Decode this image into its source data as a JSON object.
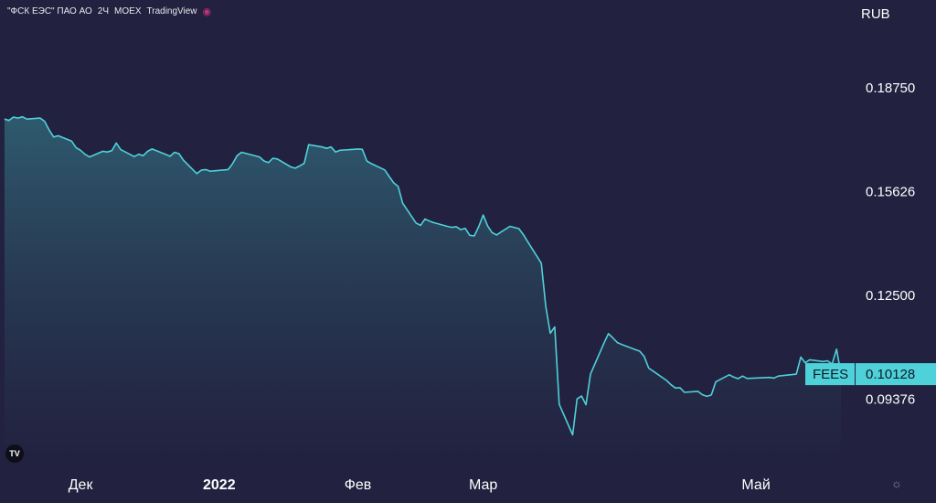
{
  "header": {
    "title": "\"ФСК ЕЭС\" ПАО АО",
    "interval": "2Ч",
    "exchange": "MOEX",
    "platform": "TradingView"
  },
  "currency": "RUB",
  "ticker": "FEES",
  "last_price": "0.10128",
  "colors": {
    "background": "#22213f",
    "line": "#4fd1d9",
    "label_bg": "#4fd1d9",
    "fill_top": "#2f5d70"
  },
  "chart_data": {
    "type": "area",
    "series": [
      {
        "name": "FEES",
        "x": [
          "2021-11-14",
          "2021-11-15",
          "2021-11-16",
          "2021-11-17",
          "2021-11-18",
          "2021-11-19",
          "2021-11-22",
          "2021-11-23",
          "2021-11-24",
          "2021-11-25",
          "2021-11-26",
          "2021-11-29",
          "2021-11-30",
          "2021-12-01",
          "2021-12-02",
          "2021-12-03",
          "2021-12-06",
          "2021-12-07",
          "2021-12-08",
          "2021-12-09",
          "2021-12-10",
          "2021-12-13",
          "2021-12-14",
          "2021-12-15",
          "2021-12-16",
          "2021-12-17",
          "2021-12-20",
          "2021-12-21",
          "2021-12-22",
          "2021-12-23",
          "2021-12-24",
          "2021-12-27",
          "2021-12-28",
          "2021-12-29",
          "2021-12-30",
          "2022-01-03",
          "2022-01-04",
          "2022-01-05",
          "2022-01-06",
          "2022-01-10",
          "2022-01-11",
          "2022-01-12",
          "2022-01-13",
          "2022-01-14",
          "2022-01-17",
          "2022-01-18",
          "2022-01-19",
          "2022-01-20",
          "2022-01-21",
          "2022-01-24",
          "2022-01-25",
          "2022-01-26",
          "2022-01-27",
          "2022-01-28",
          "2022-01-31",
          "2022-02-01",
          "2022-02-02",
          "2022-02-03",
          "2022-02-04",
          "2022-02-07",
          "2022-02-08",
          "2022-02-09",
          "2022-02-10",
          "2022-02-11",
          "2022-02-14",
          "2022-02-15",
          "2022-02-16",
          "2022-02-17",
          "2022-02-18",
          "2022-02-21",
          "2022-02-22",
          "2022-02-23",
          "2022-02-24",
          "2022-02-25",
          "2022-02-26",
          "2022-02-27",
          "2022-02-28",
          "2022-03-01",
          "2022-03-02",
          "2022-03-03",
          "2022-03-04",
          "2022-03-05",
          "2022-03-07",
          "2022-03-09",
          "2022-03-10",
          "2022-03-11",
          "2022-03-14",
          "2022-03-15",
          "2022-03-16",
          "2022-03-17",
          "2022-03-18",
          "2022-03-21",
          "2022-03-22",
          "2022-03-23",
          "2022-03-24",
          "2022-03-25",
          "2022-03-28",
          "2022-03-29",
          "2022-03-30",
          "2022-03-31",
          "2022-04-01",
          "2022-04-04",
          "2022-04-05",
          "2022-04-06",
          "2022-04-07",
          "2022-04-08",
          "2022-04-11",
          "2022-04-12",
          "2022-04-13",
          "2022-04-14",
          "2022-04-15",
          "2022-04-18",
          "2022-04-19",
          "2022-04-20",
          "2022-04-21",
          "2022-04-22",
          "2022-04-25",
          "2022-04-26",
          "2022-04-27",
          "2022-04-28",
          "2022-04-29",
          "2022-05-04",
          "2022-05-05",
          "2022-05-06",
          "2022-05-10",
          "2022-05-11",
          "2022-05-12",
          "2022-05-13",
          "2022-05-16",
          "2022-05-17",
          "2022-05-18",
          "2022-05-19",
          "2022-05-20"
        ],
        "values": [
          0.1781,
          0.1777,
          0.1787,
          0.1784,
          0.1788,
          0.1781,
          0.1784,
          0.1774,
          0.1748,
          0.1727,
          0.1731,
          0.1715,
          0.1695,
          0.1687,
          0.1675,
          0.1667,
          0.1684,
          0.1682,
          0.1686,
          0.1709,
          0.1689,
          0.1668,
          0.1675,
          0.1671,
          0.1684,
          0.1691,
          0.1675,
          0.1669,
          0.1681,
          0.1677,
          0.1657,
          0.1617,
          0.1627,
          0.1629,
          0.1624,
          0.1629,
          0.1647,
          0.1671,
          0.1681,
          0.1667,
          0.1655,
          0.165,
          0.1663,
          0.1661,
          0.1637,
          0.1633,
          0.164,
          0.1648,
          0.1704,
          0.1697,
          0.1693,
          0.1697,
          0.1682,
          0.1687,
          0.169,
          0.1691,
          0.169,
          0.1655,
          0.1647,
          0.1628,
          0.1608,
          0.1589,
          0.1578,
          0.1528,
          0.1468,
          0.1461,
          0.148,
          0.1474,
          0.1469,
          0.1458,
          0.1455,
          0.1457,
          0.1448,
          0.1452,
          0.1431,
          0.1429,
          0.1457,
          0.1492,
          0.1459,
          0.1439,
          0.1432,
          0.1441,
          0.1458,
          0.1451,
          0.1433,
          0.1411,
          0.1347,
          0.1217,
          0.1136,
          0.1155,
          0.0922,
          0.083,
          0.0938,
          0.0947,
          0.0921,
          0.1013,
          0.1106,
          0.1135,
          0.1122,
          0.1108,
          0.1102,
          0.1087,
          0.1082,
          0.1066,
          0.1031,
          0.1022,
          0.0994,
          0.0981,
          0.0971,
          0.0972,
          0.0958,
          0.0961,
          0.0951,
          0.0946,
          0.095,
          0.099,
          0.1011,
          0.1004,
          0.0999,
          0.1007,
          0.1,
          0.1003,
          0.1001,
          0.1007,
          0.1013,
          0.1064,
          0.1047,
          0.1056,
          0.1051,
          0.1053,
          0.1043,
          0.1088,
          0.1013
        ]
      }
    ],
    "xticks": [
      "Дек",
      "2022",
      "Фев",
      "Мар",
      "Май"
    ],
    "yticks": [
      "0.18750",
      "0.15626",
      "0.12500",
      "0.09376"
    ],
    "ylim": [
      0.0735,
      0.2057
    ],
    "xlim": [
      "2021-11-13",
      "2022-05-21"
    ],
    "grid": false,
    "legend": "none"
  }
}
